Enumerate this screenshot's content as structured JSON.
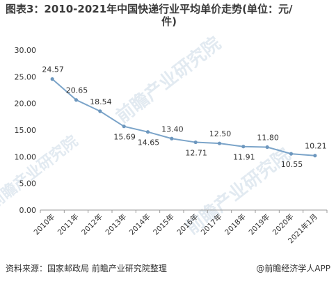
{
  "title_line1": "图表3：2010-2021年中国快递行业平均单价走势(单位：元/",
  "title_line2": "件)",
  "source": "资料来源：国家邮政局 前瞻产业研究院整理",
  "brand": "@前瞻经济学人APP",
  "watermark_text": "前瞻产业研究院",
  "colors": {
    "line": "#7ba4c9",
    "point": "#6d97be",
    "axis": "#999999",
    "grid": "#dddddd"
  },
  "chart_data": {
    "type": "line",
    "title": "图表3：2010-2021年中国快递行业平均单价走势(单位：元/件)",
    "xlabel": "",
    "ylabel": "",
    "categories": [
      "2010年",
      "2011年",
      "2012年",
      "2013年",
      "2014年",
      "2015年",
      "2016年",
      "2017年",
      "2018年",
      "2019年",
      "2020年",
      "2021年1月"
    ],
    "values": [
      24.57,
      20.65,
      18.54,
      15.69,
      14.65,
      13.4,
      12.71,
      12.5,
      11.91,
      11.8,
      10.55,
      10.21
    ],
    "value_labels": [
      "24.57",
      "20.65",
      "18.54",
      "15.69",
      "14.65",
      "13.40",
      "12.71",
      "12.50",
      "11.91",
      "11.80",
      "10.55",
      "10.21"
    ],
    "label_positions": [
      "above",
      "above",
      "above",
      "below",
      "below",
      "above",
      "below",
      "above",
      "below",
      "above",
      "below",
      "above"
    ],
    "ylim": [
      0,
      30
    ],
    "yticks": [
      "0.00",
      "5.00",
      "10.00",
      "15.00",
      "20.00",
      "25.00",
      "30.00"
    ],
    "grid": false,
    "legend": "none"
  }
}
